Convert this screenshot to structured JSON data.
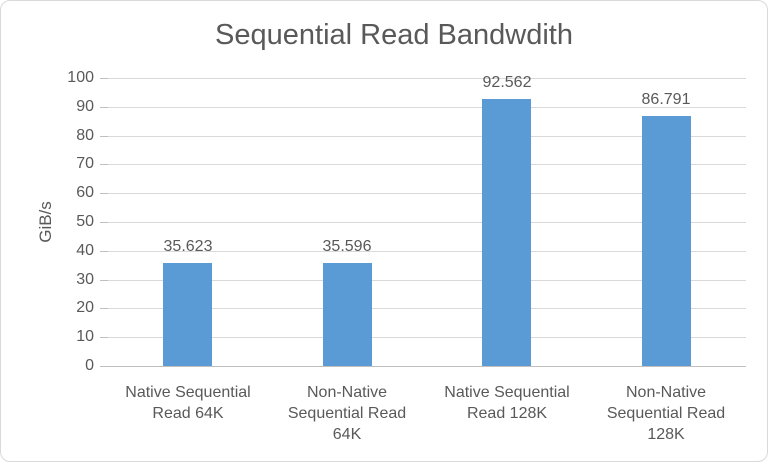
{
  "chart_data": {
    "type": "bar",
    "title": "Sequential Read Bandwdith",
    "xlabel": "",
    "ylabel": "GiB/s",
    "categories": [
      "Native Sequential Read 64K",
      "Non-Native Sequential Read 64K",
      "Native Sequential Read 128K",
      "Non-Native Sequential Read 128K"
    ],
    "values": [
      35.623,
      35.596,
      92.562,
      86.791
    ],
    "data_labels": [
      "35.623",
      "35.596",
      "92.562",
      "86.791"
    ],
    "ylim": [
      0,
      100
    ],
    "yticks": [
      0,
      10,
      20,
      30,
      40,
      50,
      60,
      70,
      80,
      90,
      100
    ],
    "grid": true,
    "legend": false,
    "colors": {
      "bar": "#5B9BD5",
      "text": "#595959",
      "gridline": "#D9D9D9",
      "axis_line": "#BFBFBF",
      "chart_border": "#D9D9D9",
      "background": "#FFFFFF"
    }
  }
}
